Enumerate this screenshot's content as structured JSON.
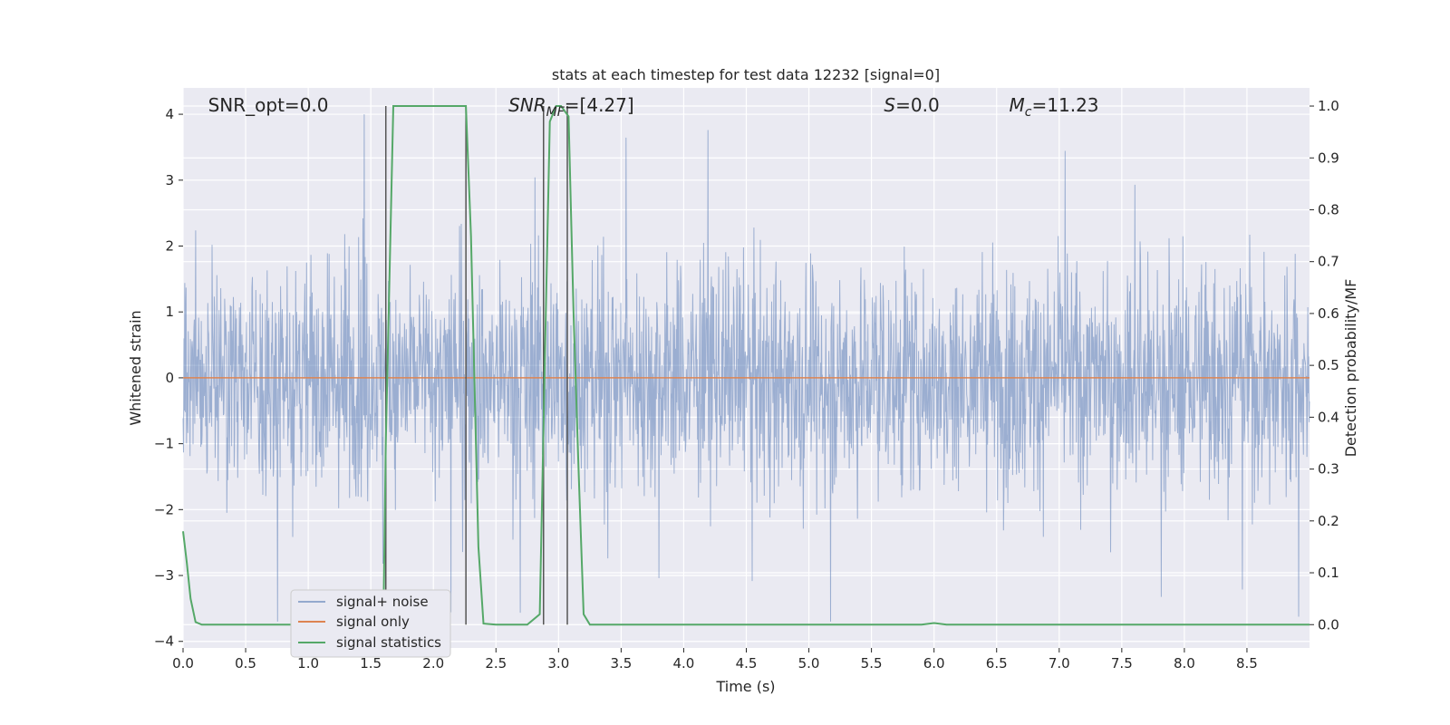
{
  "chart_data": {
    "type": "line",
    "title": "stats at each timestep for test data 12232 [signal=0]",
    "xlabel": "Time (s)",
    "ylabel": "Whitened strain",
    "y2label": "Detection probability/MF",
    "xlim": [
      0.0,
      9.0
    ],
    "ylim": [
      -4.1,
      4.4
    ],
    "y2lim": [
      -0.045,
      1.035
    ],
    "xticks": [
      0.0,
      0.5,
      1.0,
      1.5,
      2.0,
      2.5,
      3.0,
      3.5,
      4.0,
      4.5,
      5.0,
      5.5,
      6.0,
      6.5,
      7.0,
      7.5,
      8.0,
      8.5
    ],
    "xtick_labels": [
      "0.0",
      "0.5",
      "1.0",
      "1.5",
      "2.0",
      "2.5",
      "3.0",
      "3.5",
      "4.0",
      "4.5",
      "5.0",
      "5.5",
      "6.0",
      "6.5",
      "7.0",
      "7.5",
      "8.0",
      "8.5"
    ],
    "yticks": [
      4,
      3,
      2,
      1,
      0,
      -1,
      -2,
      -3,
      -4
    ],
    "ytick_labels": [
      "4",
      "3",
      "2",
      "1",
      "0",
      "−1",
      "−2",
      "−3",
      "−4"
    ],
    "y2ticks": [
      1.0,
      0.9,
      0.8,
      0.7,
      0.6,
      0.5,
      0.4,
      0.3,
      0.2,
      0.1,
      0.0
    ],
    "y2tick_labels": [
      "1.0",
      "0.9",
      "0.8",
      "0.7",
      "0.6",
      "0.5",
      "0.4",
      "0.3",
      "0.2",
      "0.1",
      "0.0"
    ],
    "grid": true,
    "legend_position": "lower-left",
    "series": [
      {
        "name": "signal+ noise",
        "color": "#4c72b0",
        "kind": "noise",
        "x_range": [
          0.0,
          9.0
        ],
        "amplitude_envelope": [
          -3.7,
          4.0
        ]
      },
      {
        "name": "signal only",
        "color": "#dd8452",
        "x": [
          0.0,
          9.0
        ],
        "y": [
          0.0,
          0.0
        ]
      },
      {
        "name": "signal statistics",
        "color": "#55a868",
        "axis": "right",
        "x": [
          0.0,
          0.03,
          0.06,
          0.1,
          0.15,
          0.25,
          0.5,
          1.0,
          1.5,
          1.6,
          1.62,
          1.68,
          1.75,
          2.0,
          2.2,
          2.26,
          2.3,
          2.36,
          2.4,
          2.5,
          2.75,
          2.85,
          2.89,
          2.93,
          2.98,
          3.02,
          3.08,
          3.12,
          3.16,
          3.2,
          3.25,
          3.5,
          4.0,
          5.0,
          5.9,
          6.0,
          6.1,
          6.5,
          7.0,
          8.0,
          9.0
        ],
        "y": [
          0.18,
          0.12,
          0.05,
          0.005,
          0.0,
          0.0,
          0.0,
          0.0,
          0.0,
          0.0,
          0.35,
          1.0,
          1.0,
          1.0,
          1.0,
          1.0,
          0.75,
          0.15,
          0.002,
          0.0,
          0.0,
          0.02,
          0.5,
          0.97,
          1.0,
          1.0,
          0.98,
          0.6,
          0.3,
          0.02,
          0.0,
          0.0,
          0.0,
          0.0,
          0.0,
          0.003,
          0.0,
          0.0,
          0.0,
          0.0,
          0.0
        ]
      }
    ],
    "vlines": [
      1.62,
      2.26,
      2.88,
      3.07
    ],
    "vline_color": "#555555",
    "annotations": [
      {
        "text": "SNR_opt=0.0",
        "x": 0.2
      },
      {
        "text": "SNR",
        "sub": "MF",
        "rest": "=[4.27]",
        "x": 2.6
      },
      {
        "text": "S",
        "rest": "=0.0",
        "x": 5.6
      },
      {
        "text": "M",
        "sub": "c",
        "rest": "=11.23",
        "x": 6.6
      }
    ],
    "colors": {
      "background": "#eaeaf2",
      "grid": "#ffffff",
      "noise": "#4c72b0",
      "signal": "#dd8452",
      "stats": "#55a868"
    }
  }
}
